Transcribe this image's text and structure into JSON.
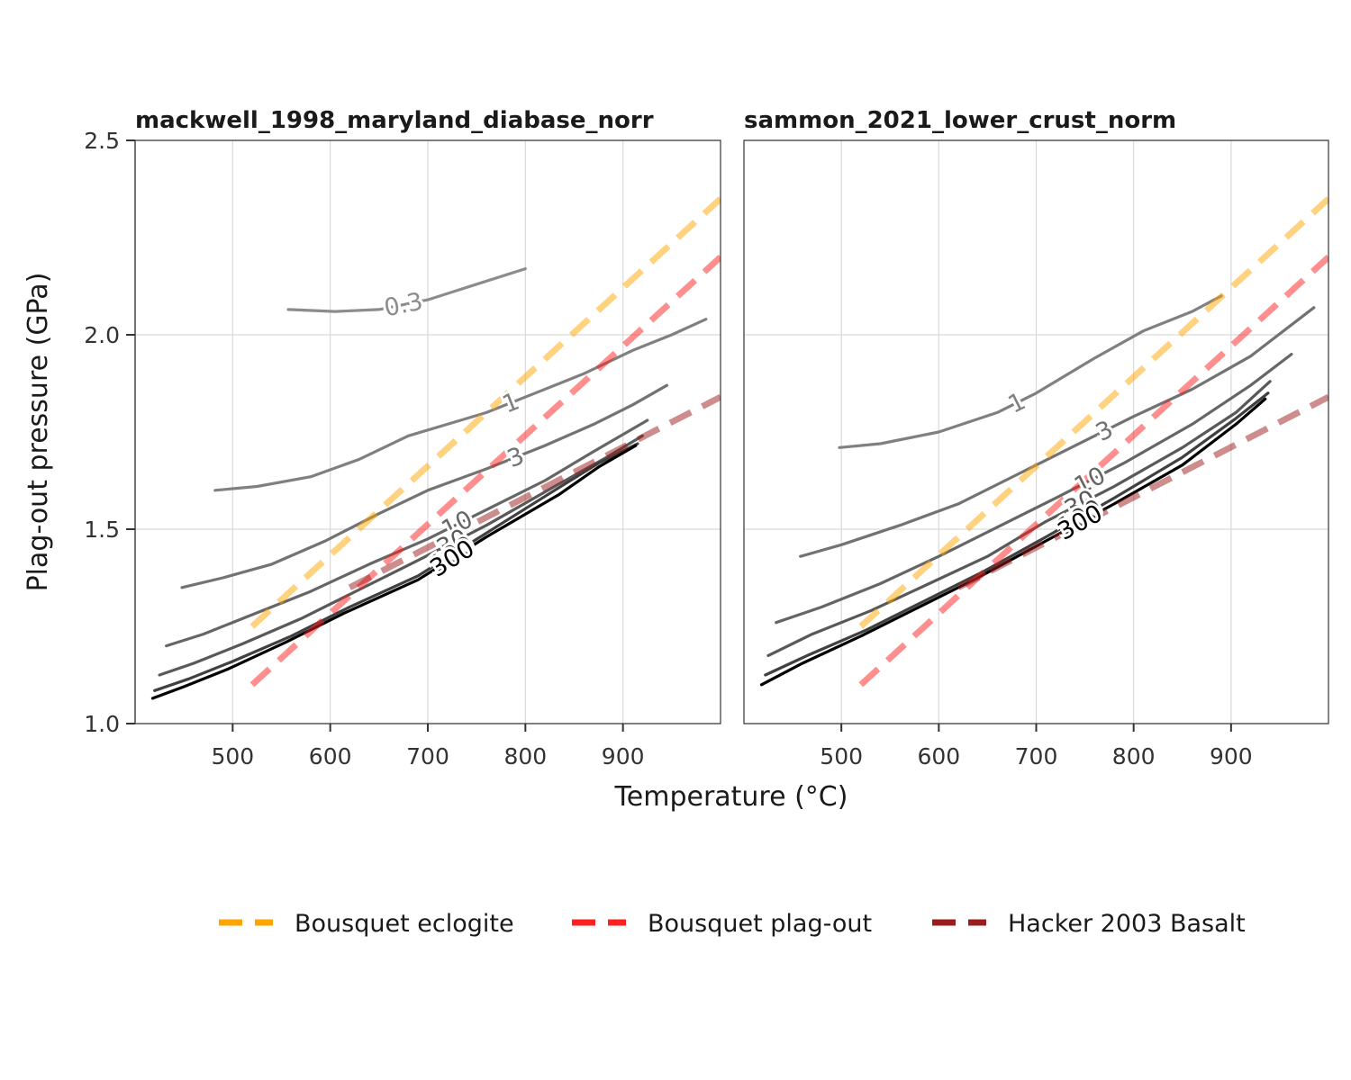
{
  "chart_data": {
    "type": "line",
    "xlabel": "Temperature (°C)",
    "ylabel": "Plag-out pressure (GPa)",
    "xlim": [
      400,
      1000
    ],
    "ylim": [
      1.0,
      2.5
    ],
    "x_ticks": [
      "500",
      "600",
      "700",
      "800",
      "900"
    ],
    "y_ticks": [
      "1.0",
      "1.5",
      "2.0",
      "2.5"
    ],
    "grid": true,
    "legend_position": "bottom",
    "reference_lines": [
      {
        "name": "Bousquet eclogite",
        "color": "#FFA500",
        "x": [
          520,
          1000
        ],
        "y": [
          1.25,
          2.35
        ]
      },
      {
        "name": "Bousquet plag-out",
        "color": "#FF2020",
        "x": [
          520,
          1000
        ],
        "y": [
          1.1,
          2.2
        ]
      },
      {
        "name": "Hacker 2003 Basalt",
        "color": "#9B1C1C",
        "x": [
          620,
          1000
        ],
        "y": [
          1.35,
          1.84
        ]
      }
    ],
    "panels": [
      {
        "title": "mackwell_1998_maryland_diabase_norr",
        "contours": [
          {
            "label": "0.3",
            "color": "#8c8c8c",
            "x": [
              557,
              605,
              650,
              700,
              750,
              800
            ],
            "y": [
              2.065,
              2.06,
              2.065,
              2.09,
              2.13,
              2.17
            ]
          },
          {
            "label": "1",
            "color": "#808080",
            "x": [
              482,
              525,
              580,
              630,
              680,
              720,
              760,
              810,
              860,
              910,
              950,
              985
            ],
            "y": [
              1.6,
              1.61,
              1.635,
              1.68,
              1.74,
              1.77,
              1.8,
              1.85,
              1.9,
              1.96,
              2.0,
              2.04
            ]
          },
          {
            "label": "3",
            "color": "#737373",
            "x": [
              448,
              490,
              540,
              595,
              650,
              700,
              760,
              820,
              870,
              910,
              945
            ],
            "y": [
              1.35,
              1.375,
              1.41,
              1.47,
              1.54,
              1.6,
              1.655,
              1.715,
              1.77,
              1.82,
              1.87
            ]
          },
          {
            "label": "10",
            "color": "#666666",
            "x": [
              432,
              470,
              520,
              580,
              640,
              700,
              760,
              820,
              870,
              925
            ],
            "y": [
              1.2,
              1.23,
              1.28,
              1.34,
              1.41,
              1.475,
              1.55,
              1.625,
              1.7,
              1.78
            ]
          },
          {
            "label": "30",
            "color": "#595959",
            "x": [
              425,
              460,
              510,
              570,
              630,
              690,
              760,
              830,
              880,
              920
            ],
            "y": [
              1.125,
              1.155,
              1.205,
              1.27,
              1.345,
              1.42,
              1.51,
              1.61,
              1.68,
              1.74
            ]
          },
          {
            "label": "100",
            "color": "#404040",
            "x": [
              420,
              455,
              500,
              560,
              620,
              690,
              760,
              830,
              875,
              915
            ],
            "y": [
              1.085,
              1.115,
              1.16,
              1.225,
              1.3,
              1.38,
              1.49,
              1.6,
              1.67,
              1.72
            ]
          },
          {
            "label": "300",
            "color": "#000000",
            "x": [
              418,
              450,
              495,
              555,
              615,
              690,
              760,
              835,
              875,
              913
            ],
            "y": [
              1.065,
              1.095,
              1.14,
              1.21,
              1.285,
              1.37,
              1.48,
              1.59,
              1.66,
              1.715
            ]
          }
        ]
      },
      {
        "title": "sammon_2021_lower_crust_norm",
        "contours": [
          {
            "label": "1",
            "color": "#808080",
            "x": [
              498,
              540,
              600,
              660,
              700,
              760,
              810,
              860,
              890
            ],
            "y": [
              1.71,
              1.72,
              1.75,
              1.8,
              1.85,
              1.94,
              2.01,
              2.06,
              2.1
            ]
          },
          {
            "label": "3",
            "color": "#737373",
            "x": [
              458,
              500,
              560,
              620,
              680,
              740,
              800,
              860,
              920,
              985
            ],
            "y": [
              1.43,
              1.46,
              1.51,
              1.565,
              1.64,
              1.715,
              1.79,
              1.86,
              1.945,
              2.07
            ]
          },
          {
            "label": "10",
            "color": "#666666",
            "x": [
              433,
              480,
              540,
              600,
              660,
              720,
              790,
              860,
              920,
              962
            ],
            "y": [
              1.26,
              1.3,
              1.36,
              1.43,
              1.505,
              1.58,
              1.67,
              1.77,
              1.87,
              1.95
            ]
          },
          {
            "label": "30",
            "color": "#595959",
            "x": [
              425,
              470,
              530,
              590,
              650,
              710,
              780,
              850,
              905,
              940
            ],
            "y": [
              1.175,
              1.23,
              1.29,
              1.36,
              1.43,
              1.52,
              1.61,
              1.71,
              1.8,
              1.88
            ]
          },
          {
            "label": "100",
            "color": "#404040",
            "x": [
              422,
              465,
              525,
              585,
              645,
              710,
              780,
              850,
              905,
              938
            ],
            "y": [
              1.125,
              1.175,
              1.24,
              1.315,
              1.39,
              1.48,
              1.58,
              1.685,
              1.785,
              1.85
            ]
          },
          {
            "label": "300",
            "color": "#000000",
            "x": [
              418,
              460,
              520,
              580,
              640,
              710,
              780,
              850,
              905,
              935
            ],
            "y": [
              1.1,
              1.155,
              1.225,
              1.3,
              1.375,
              1.47,
              1.565,
              1.665,
              1.77,
              1.835
            ]
          }
        ]
      }
    ]
  },
  "colors": {
    "background": "#ffffff",
    "grid": "#d9d9d9",
    "panel_border": "#333333"
  }
}
